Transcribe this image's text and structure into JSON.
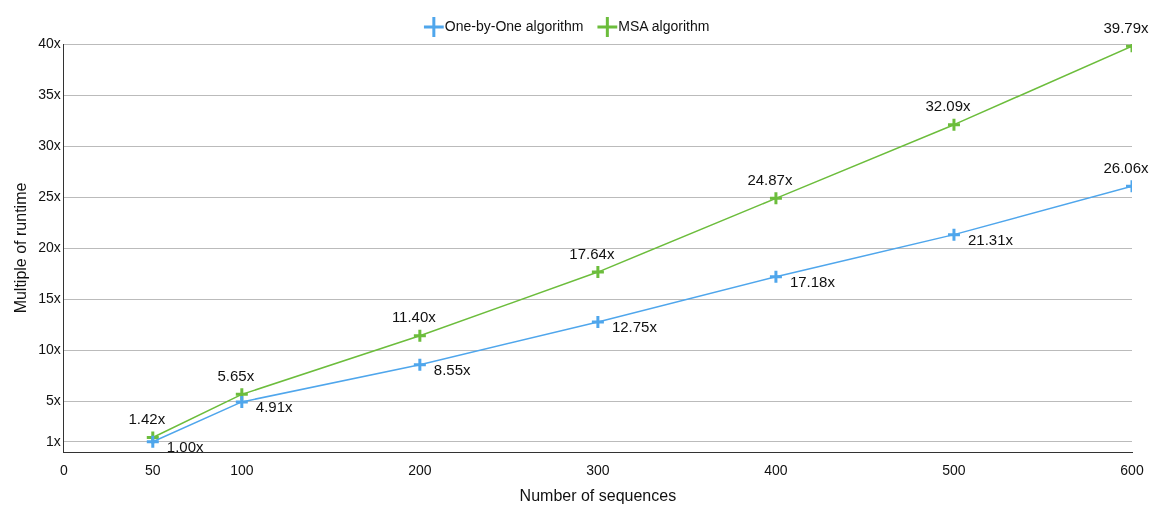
{
  "chart_data": {
    "type": "line",
    "xlabel": "Number of sequences",
    "ylabel": "Multiple of runtime",
    "x": [
      50,
      100,
      200,
      300,
      400,
      500,
      600
    ],
    "xlim": [
      0,
      600
    ],
    "xticks": [
      0,
      50,
      100,
      200,
      300,
      400,
      500,
      600
    ],
    "ylim": [
      0,
      40
    ],
    "yticks": [
      {
        "value": 1,
        "label": "1x"
      },
      {
        "value": 5,
        "label": "5x"
      },
      {
        "value": 10,
        "label": "10x"
      },
      {
        "value": 15,
        "label": "15x"
      },
      {
        "value": 20,
        "label": "20x"
      },
      {
        "value": 25,
        "label": "25x"
      },
      {
        "value": 30,
        "label": "30x"
      },
      {
        "value": 35,
        "label": "35x"
      },
      {
        "value": 40,
        "label": "40x"
      }
    ],
    "grid": "y",
    "legend": "top",
    "marker": "cross",
    "line_style": "solid",
    "series": [
      {
        "name": "One-by-One algorithm",
        "color": "#4fa6ec",
        "values": [
          1.0,
          4.91,
          8.55,
          12.75,
          17.18,
          21.31,
          26.06
        ],
        "value_labels": [
          "1.00x",
          "4.91x",
          "8.55x",
          "12.75x",
          "17.18x",
          "21.31x",
          "26.06x"
        ]
      },
      {
        "name": "MSA algorithm",
        "color": "#6cbd3c",
        "values": [
          1.42,
          5.65,
          11.4,
          17.64,
          24.87,
          32.09,
          39.79
        ],
        "value_labels": [
          "1.42x",
          "5.65x",
          "11.40x",
          "17.64x",
          "24.87x",
          "32.09x",
          "39.79x"
        ]
      }
    ]
  }
}
